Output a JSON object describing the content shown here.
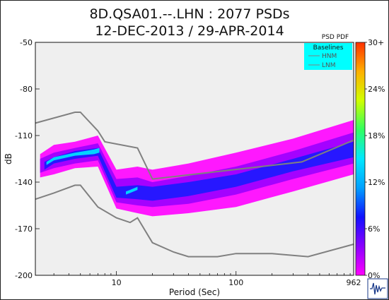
{
  "chart_data": {
    "type": "heatmap",
    "title": [
      "8D.QSA01.--.LHN : 2077 PSDs",
      "12-DEC-2013 / 29-APR-2014"
    ],
    "xlabel": "Period (Sec)",
    "ylabel": "dB",
    "x_scale": "log",
    "xlim": [
      2.1,
      962
    ],
    "ylim": [
      -200,
      -50
    ],
    "x_ticks": [
      "10",
      "100",
      "962"
    ],
    "y_ticks": [
      "-50",
      "-80",
      "-110",
      "-140",
      "-170",
      "-200"
    ],
    "colorbar": {
      "title": "PSD PDF",
      "ticks": [
        "30+",
        "24%",
        "18%",
        "12%",
        "6%",
        "0%"
      ],
      "range": [
        0,
        30
      ],
      "colors": [
        "#ff00ff",
        "#8a00ff",
        "#1010ff",
        "#00a0ff",
        "#00e8ff",
        "#30ff60",
        "#d0ff00",
        "#ffb000",
        "#ff3000"
      ]
    },
    "legend": {
      "title": "Baselines",
      "entries": [
        "HNM",
        "LNM"
      ],
      "position": "top-right",
      "background": "#00ffff"
    },
    "series": [
      {
        "name": "HNM",
        "color": "#808080",
        "x": [
          2.1,
          4.5,
          5.0,
          7.0,
          8.0,
          15.0,
          20.0,
          354.8,
          962
        ],
        "y": [
          -102,
          -95,
          -95,
          -107,
          -114,
          -118,
          -138,
          -127,
          -113
        ]
      },
      {
        "name": "LNM",
        "color": "#808080",
        "x": [
          2.1,
          3.0,
          4.5,
          5.0,
          7.0,
          10.0,
          13.0,
          15.0,
          20.0,
          30.0,
          40.0,
          70.0,
          100.0,
          200.0,
          400.0,
          962
        ],
        "y": [
          -151,
          -147,
          -142,
          -142,
          -156,
          -163,
          -166,
          -163,
          -179,
          -185,
          -188,
          -188,
          -186,
          -186,
          -188,
          -180
        ]
      }
    ],
    "density_bands": [
      {
        "level": "low",
        "color": "#ff00ff",
        "x": [
          2.3,
          3.0,
          4.5,
          7.0,
          10.0,
          15.0,
          20.0,
          40.0,
          100.0,
          300.0,
          962
        ],
        "y_low": [
          -137,
          -135,
          -131,
          -130,
          -157,
          -160,
          -162,
          -160,
          -156,
          -146,
          -135
        ],
        "y_high": [
          -122,
          -116,
          -114,
          -110,
          -132,
          -130,
          -132,
          -128,
          -121,
          -112,
          -100
        ]
      },
      {
        "level": "mid",
        "color": "#9a00ff",
        "x": [
          2.3,
          3.0,
          4.5,
          7.0,
          10.0,
          15.0,
          20.0,
          40.0,
          100.0,
          300.0,
          962
        ],
        "y_low": [
          -134,
          -131,
          -128,
          -126,
          -153,
          -155,
          -156,
          -154,
          -148,
          -138,
          -128
        ],
        "y_high": [
          -125,
          -121,
          -118,
          -115,
          -138,
          -137,
          -140,
          -136,
          -130,
          -120,
          -108
        ]
      },
      {
        "level": "high",
        "color": "#1a1aff",
        "x": [
          2.5,
          3.0,
          4.5,
          7.0,
          10.0,
          15.0,
          20.0,
          40.0,
          100.0,
          300.0,
          962
        ],
        "y_low": [
          -132,
          -128,
          -125,
          -123,
          -150,
          -151,
          -152,
          -149,
          -143,
          -133,
          -124
        ],
        "y_high": [
          -127,
          -124,
          -120,
          -118,
          -143,
          -142,
          -143,
          -140,
          -135,
          -125,
          -114
        ]
      },
      {
        "level": "peak",
        "color": "#00e8ff",
        "x": [
          2.6,
          3.0,
          4.5,
          6.5,
          7.2
        ],
        "y_low": [
          -129,
          -126,
          -123,
          -122,
          -121
        ],
        "y_high": [
          -127,
          -124,
          -121,
          -119,
          -118
        ]
      },
      {
        "level": "peak",
        "color": "#00e8ff",
        "x": [
          12.0,
          13.0,
          15.0
        ],
        "y_low": [
          -148,
          -147,
          -145
        ],
        "y_high": [
          -146,
          -145,
          -143
        ]
      }
    ]
  }
}
